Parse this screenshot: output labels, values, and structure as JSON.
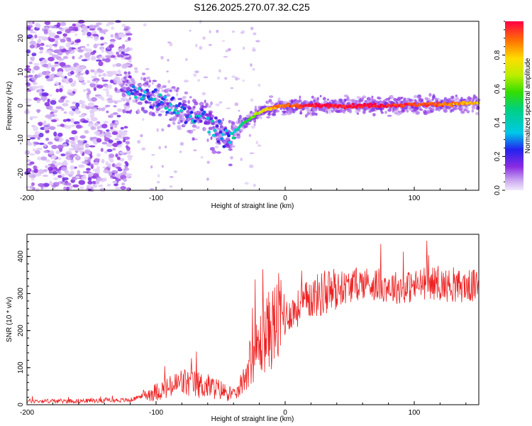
{
  "title": "S126.2025.270.07.32.C25",
  "chart_data": [
    {
      "type": "heatmap",
      "title": "S126.2025.270.07.32.C25",
      "xlabel": "Height of straight line (km)",
      "ylabel": "Frequency (Hz)",
      "xlim": [
        -200,
        150
      ],
      "ylim": [
        -25,
        25
      ],
      "x_ticks": [
        "-200",
        "-100",
        "0",
        "100"
      ],
      "x_tick_values": [
        -200,
        -100,
        0,
        100
      ],
      "y_ticks": [
        "-20",
        "-10",
        "0",
        "10",
        "20"
      ],
      "y_tick_values": [
        -20,
        -10,
        0,
        10,
        20
      ],
      "colorbar": {
        "label": "Normalized spectral amplitude",
        "range": [
          0,
          1
        ],
        "ticks": [
          "0.0",
          "0.2",
          "0.4",
          "0.6",
          "0.8"
        ],
        "tick_values": [
          0.0,
          0.2,
          0.4,
          0.6,
          0.8
        ]
      },
      "ridge": {
        "description_points_x_km": [
          -120,
          -100,
          -80,
          -60,
          -50,
          -42,
          -35,
          -25,
          -15,
          0,
          20,
          50,
          100,
          150
        ],
        "frequency_hz": [
          5,
          2,
          -1,
          -4,
          -8,
          -9,
          -6,
          -3,
          -1,
          0,
          0,
          0,
          0.3,
          0.8
        ],
        "amplitude": [
          0.25,
          0.3,
          0.3,
          0.25,
          0.3,
          0.3,
          0.45,
          0.6,
          0.8,
          0.9,
          1.0,
          1.0,
          0.95,
          0.8
        ]
      }
    },
    {
      "type": "line",
      "xlabel": "Height of straight line (km)",
      "ylabel": "SNR (10 * v/v)",
      "xlim": [
        -200,
        150
      ],
      "ylim": [
        0,
        460
      ],
      "x_ticks": [
        "-200",
        "-100",
        "0",
        "100"
      ],
      "x_tick_values": [
        -200,
        -100,
        0,
        100
      ],
      "y_ticks": [
        "0",
        "100",
        "200",
        "300",
        "400"
      ],
      "y_tick_values": [
        0,
        100,
        200,
        300,
        400
      ],
      "series": [
        {
          "name": "SNR",
          "color": "#ee2222",
          "x": [
            -200,
            -180,
            -160,
            -140,
            -120,
            -110,
            -100,
            -90,
            -80,
            -70,
            -60,
            -50,
            -40,
            -35,
            -30,
            -25,
            -20,
            -15,
            -10,
            -5,
            0,
            10,
            20,
            30,
            40,
            50,
            60,
            70,
            80,
            90,
            100,
            110,
            120,
            130,
            140,
            150
          ],
          "values": [
            10,
            10,
            10,
            12,
            12,
            25,
            35,
            45,
            60,
            55,
            50,
            40,
            25,
            40,
            90,
            130,
            160,
            190,
            210,
            230,
            240,
            260,
            290,
            300,
            310,
            320,
            330,
            325,
            320,
            315,
            320,
            330,
            325,
            320,
            320,
            320
          ]
        }
      ]
    }
  ]
}
